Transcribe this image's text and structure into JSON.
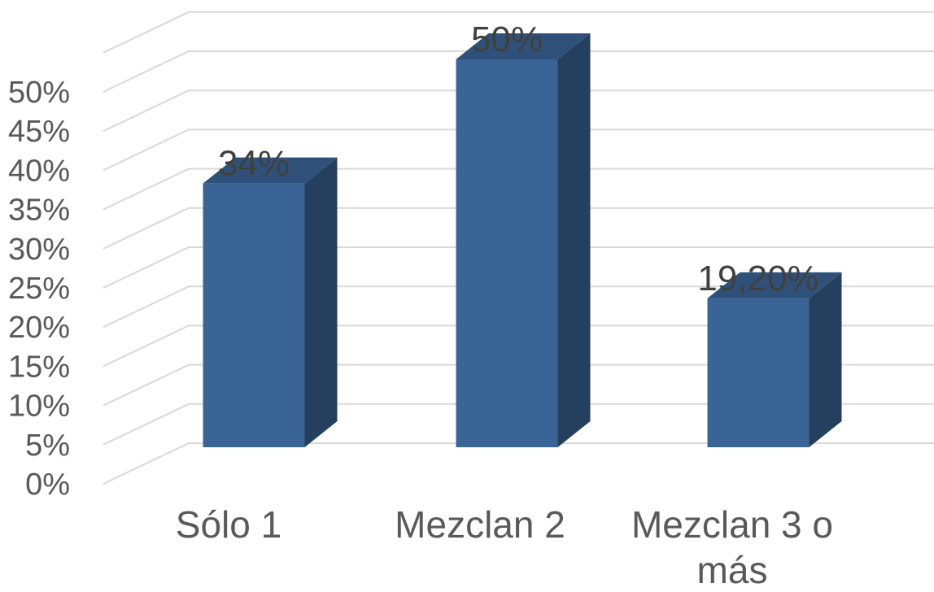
{
  "chart_data": {
    "type": "bar",
    "style": "3d-column",
    "categories": [
      [
        "Sólo 1"
      ],
      [
        "Mezclan 2"
      ],
      [
        "Mezclan 3 o",
        "más"
      ]
    ],
    "values": [
      34,
      50,
      19.2
    ],
    "data_labels": [
      "34%",
      "50%",
      "19,20%"
    ],
    "y_ticks": [
      "0%",
      "5%",
      "10%",
      "15%",
      "20%",
      "25%",
      "30%",
      "35%",
      "40%",
      "45%",
      "50%"
    ],
    "ylim": [
      0,
      50
    ],
    "grid": true,
    "legend": "none",
    "colors": {
      "bar_front": "#3b6496",
      "bar_top": "#2f5179",
      "bar_side": "#253f5e",
      "grid": "#d9d9d9",
      "text": "#595959"
    }
  }
}
